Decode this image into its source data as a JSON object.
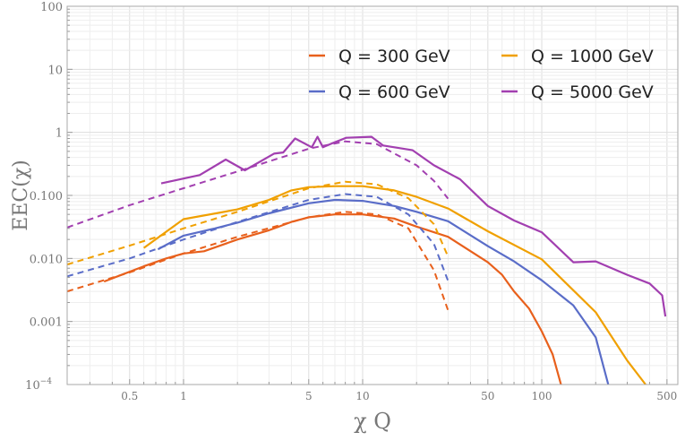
{
  "chart_data": {
    "type": "line",
    "xlabel": "χ Q",
    "ylabel": "EEC(χ)",
    "xscale": "log",
    "yscale": "log",
    "xlim": [
      0.224,
      575
    ],
    "ylim": [
      0.0001,
      100
    ],
    "grid": true,
    "legend_position": "top-right",
    "x_ticks": [
      {
        "v": 0.5,
        "label": "0.5"
      },
      {
        "v": 1,
        "label": "1"
      },
      {
        "v": 5,
        "label": "5"
      },
      {
        "v": 10,
        "label": "10"
      },
      {
        "v": 50,
        "label": "50"
      },
      {
        "v": 100,
        "label": "100"
      },
      {
        "v": 500,
        "label": "500"
      }
    ],
    "y_ticks": [
      {
        "v": 100,
        "label": "100"
      },
      {
        "v": 10,
        "label": "10"
      },
      {
        "v": 1,
        "label": "1"
      },
      {
        "v": 0.1,
        "label": "0.100"
      },
      {
        "v": 0.01,
        "label": "0.010"
      },
      {
        "v": 0.001,
        "label": "0.001"
      },
      {
        "v": 0.0001,
        "label": "10",
        "sup": "−4"
      }
    ],
    "series": [
      {
        "name": "Q = 300 GeV",
        "color": "#e8601c",
        "style": "solid",
        "x": [
          0.36,
          0.6,
          0.8,
          1,
          1.3,
          2,
          3,
          4,
          5,
          7,
          10,
          15,
          20,
          30,
          50,
          60,
          70,
          85,
          100,
          115,
          128
        ],
        "y": [
          0.0043,
          0.0075,
          0.01,
          0.012,
          0.013,
          0.02,
          0.028,
          0.038,
          0.045,
          0.05,
          0.05,
          0.043,
          0.032,
          0.022,
          0.0087,
          0.0055,
          0.003,
          0.0016,
          0.0007,
          0.0003,
          0.0001
        ]
      },
      {
        "name": "Q = 600 GeV",
        "color": "#5a6dc8",
        "style": "solid",
        "x": [
          0.72,
          1,
          1.5,
          2,
          3,
          5,
          7,
          10,
          15,
          20,
          30,
          50,
          70,
          100,
          150,
          200,
          235
        ],
        "y": [
          0.014,
          0.023,
          0.03,
          0.037,
          0.052,
          0.075,
          0.085,
          0.082,
          0.068,
          0.055,
          0.039,
          0.0157,
          0.009,
          0.0045,
          0.0018,
          0.00056,
          0.0001
        ]
      },
      {
        "name": "Q = 1000 GeV",
        "color": "#f0a000",
        "style": "solid",
        "x": [
          0.6,
          1,
          2,
          3,
          4,
          5,
          7,
          10,
          15,
          20,
          30,
          50,
          100,
          200,
          300,
          380
        ],
        "y": [
          0.0147,
          0.042,
          0.06,
          0.085,
          0.12,
          0.135,
          0.14,
          0.14,
          0.12,
          0.095,
          0.062,
          0.027,
          0.0097,
          0.0014,
          0.00024,
          0.0001
        ]
      },
      {
        "name": "Q = 5000 GeV",
        "color": "#a23fb0",
        "style": "solid",
        "x": [
          0.75,
          1.23,
          1.72,
          2.2,
          3.2,
          3.6,
          4.2,
          5.2,
          5.6,
          6,
          7,
          8.1,
          11.2,
          13,
          19,
          25,
          35,
          50,
          70,
          100,
          150,
          200,
          300,
          400,
          470,
          490
        ],
        "y": [
          0.155,
          0.21,
          0.37,
          0.25,
          0.46,
          0.48,
          0.8,
          0.58,
          0.85,
          0.58,
          0.7,
          0.82,
          0.85,
          0.62,
          0.52,
          0.3,
          0.18,
          0.068,
          0.04,
          0.026,
          0.0087,
          0.009,
          0.0055,
          0.004,
          0.0026,
          0.0012
        ]
      },
      {
        "color": "#e8601c",
        "style": "dashed",
        "x": [
          0.224,
          0.5,
          1,
          2,
          5,
          8,
          12,
          18,
          25,
          30
        ],
        "y": [
          0.003,
          0.006,
          0.012,
          0.022,
          0.045,
          0.055,
          0.05,
          0.03,
          0.0065,
          0.0015
        ]
      },
      {
        "color": "#5a6dc8",
        "style": "dashed",
        "x": [
          0.224,
          0.5,
          1,
          2,
          5,
          8,
          12,
          18,
          25,
          30
        ],
        "y": [
          0.0052,
          0.01,
          0.02,
          0.038,
          0.085,
          0.105,
          0.095,
          0.05,
          0.017,
          0.0044
        ]
      },
      {
        "color": "#f0a000",
        "style": "dashed",
        "x": [
          0.224,
          0.5,
          1,
          2,
          5,
          8,
          12,
          18,
          25,
          30
        ],
        "y": [
          0.008,
          0.016,
          0.03,
          0.055,
          0.13,
          0.165,
          0.15,
          0.09,
          0.035,
          0.0107
        ]
      },
      {
        "color": "#a23fb0",
        "style": "dashed",
        "x": [
          0.224,
          0.5,
          1,
          2,
          5,
          8,
          12,
          20,
          25,
          30
        ],
        "y": [
          0.031,
          0.07,
          0.13,
          0.24,
          0.55,
          0.72,
          0.65,
          0.3,
          0.17,
          0.089
        ]
      }
    ],
    "legend": [
      {
        "label": "Q = 300 GeV",
        "color": "#e8601c"
      },
      {
        "label": "Q = 1000 GeV",
        "color": "#f0a000"
      },
      {
        "label": "Q = 600 GeV",
        "color": "#5a6dc8"
      },
      {
        "label": "Q = 5000 GeV",
        "color": "#a23fb0"
      }
    ]
  }
}
